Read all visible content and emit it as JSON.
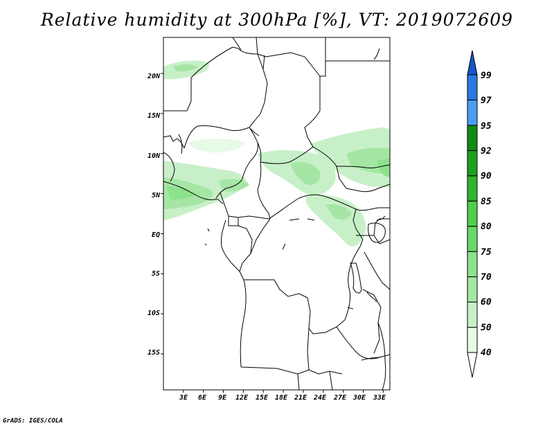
{
  "title": "Relative humidity at 300hPa [%], VT: 2019072609",
  "credit": "GrADS: IGES/COLA",
  "map": {
    "projection": "lat-lon",
    "lon_range": [
      0,
      34
    ],
    "lat_range": [
      -19.5,
      24.5
    ],
    "lat_ticks": [
      {
        "value": 20,
        "label": "20N"
      },
      {
        "value": 15,
        "label": "15N"
      },
      {
        "value": 10,
        "label": "10N"
      },
      {
        "value": 5,
        "label": "5N"
      },
      {
        "value": 0,
        "label": "EQ"
      },
      {
        "value": -5,
        "label": "5S"
      },
      {
        "value": -10,
        "label": "10S"
      },
      {
        "value": -15,
        "label": "15S"
      }
    ],
    "lon_ticks": [
      {
        "value": 3,
        "label": "3E"
      },
      {
        "value": 6,
        "label": "6E"
      },
      {
        "value": 9,
        "label": "9E"
      },
      {
        "value": 12,
        "label": "12E"
      },
      {
        "value": 15,
        "label": "15E"
      },
      {
        "value": 18,
        "label": "18E"
      },
      {
        "value": 21,
        "label": "21E"
      },
      {
        "value": 24,
        "label": "24E"
      },
      {
        "value": 27,
        "label": "27E"
      },
      {
        "value": 30,
        "label": "30E"
      },
      {
        "value": 33,
        "label": "33E"
      }
    ]
  },
  "colorbar": {
    "labels": [
      "40",
      "50",
      "60",
      "70",
      "75",
      "80",
      "85",
      "90",
      "92",
      "95",
      "97",
      "99"
    ],
    "colors": [
      "#ffffff",
      "#e6fae6",
      "#c8f0c8",
      "#a5e6a5",
      "#8ce28c",
      "#6ad86a",
      "#4ece4e",
      "#30b430",
      "#1e9f1e",
      "#118a11",
      "#4a9ef0",
      "#2a78e0",
      "#1656c8"
    ]
  }
}
